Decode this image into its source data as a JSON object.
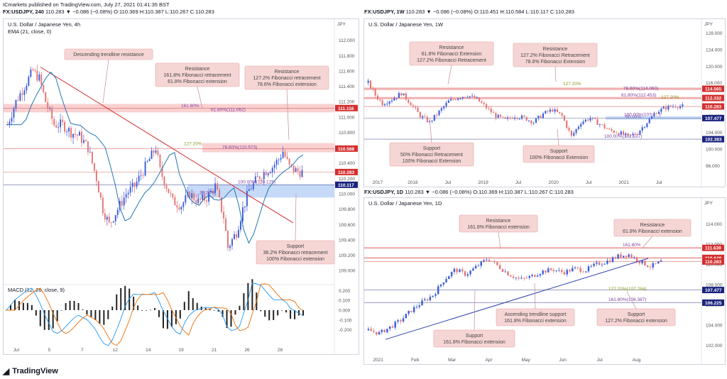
{
  "header": {
    "published": "ICmarkets published on TradingView.com, July 27, 2021 01:41:35 BST",
    "ticker_symbol": "FX:USDJPY, 240",
    "ticker_values": " 110.283 ▼ −0.086 (−0.08%) O:110.369 H:110.387 L:110.267 C:110.283"
  },
  "brand": {
    "logo": "◢",
    "name": "TradingView"
  },
  "colors": {
    "up": "#3b5bdb",
    "down": "#e57373",
    "resistance_zone": "#f8c9c9",
    "support_zone": "#bcd4f7",
    "trend": "#d32f2f",
    "ema": "#1f77b4",
    "annotation": "#f6d5d5",
    "annotation_border": "#e6a5a5",
    "red_tag": "#d32f2f",
    "navy_tag": "#1a237e"
  },
  "panels": {
    "p4h": {
      "title_symbol": "FX:USDJPY, 240",
      "pair": "U.S. Dollar / Japanese Yen, 4h",
      "ema_label": "EMA (21, close, 0)",
      "macd_label": "MACD (12, 26, close, 9)",
      "currency": "JPY"
    },
    "p1w": {
      "title_symbol": "FX:USDJPY, 1W",
      "title_values": " 110.283 ▼ −0.086 (−0.08%) O:110.451 H:110.584 L:110.117 C:110.283",
      "pair": "U.S. Dollar / Japanese Yen, 1W",
      "currency": "JPY"
    },
    "p1d": {
      "title_symbol": "FX:USDJPY, 1D",
      "title_values": " 110.283 ▼ −0.086 (−0.08%) O:110.369 H:110.387 L:110.267 C:110.283",
      "pair": "U.S. Dollar / Japanese Yen, 1D",
      "currency": "JPY"
    }
  },
  "chart_data": [
    {
      "id": "p4h",
      "type": "candlestick",
      "title": "U.S. Dollar / Japanese Yen, 4h",
      "ylim": [
        108.9,
        112.2
      ],
      "y_ticks": [
        109.0,
        109.2,
        109.4,
        109.6,
        109.8,
        110.0,
        110.2,
        110.4,
        110.6,
        110.8,
        111.0,
        111.2,
        111.4,
        111.6,
        111.8,
        112.0,
        112.2
      ],
      "x_ticks": [
        "Jul",
        "5",
        "7",
        "12",
        "14",
        "19",
        "21",
        "26",
        "28"
      ],
      "series": [
        {
          "name": "EMA (21, close, 0)"
        }
      ],
      "price_path": [
        [
          0,
          110.9
        ],
        [
          4,
          111.2
        ],
        [
          8,
          111.4
        ],
        [
          12,
          111.6
        ],
        [
          15,
          111.5
        ],
        [
          18,
          111.2
        ],
        [
          22,
          110.9
        ],
        [
          26,
          110.9
        ],
        [
          30,
          110.8
        ],
        [
          34,
          110.75
        ],
        [
          38,
          110.6
        ],
        [
          42,
          110.2
        ],
        [
          45,
          109.8
        ],
        [
          48,
          109.6
        ],
        [
          52,
          109.8
        ],
        [
          56,
          110.0
        ],
        [
          60,
          110.1
        ],
        [
          64,
          110.3
        ],
        [
          68,
          110.5
        ],
        [
          70,
          110.6
        ],
        [
          72,
          110.3
        ],
        [
          75,
          110.1
        ],
        [
          78,
          109.9
        ],
        [
          82,
          109.85
        ],
        [
          86,
          110.0
        ],
        [
          90,
          109.9
        ],
        [
          94,
          109.95
        ],
        [
          98,
          110.1
        ],
        [
          102,
          109.7
        ],
        [
          104,
          109.3
        ],
        [
          106,
          109.4
        ],
        [
          108,
          109.5
        ],
        [
          111,
          109.8
        ],
        [
          114,
          110.05
        ],
        [
          118,
          110.2
        ],
        [
          122,
          110.3
        ],
        [
          125,
          110.35
        ],
        [
          128,
          110.45
        ],
        [
          130,
          110.55
        ],
        [
          133,
          110.35
        ],
        [
          136,
          110.3
        ],
        [
          139,
          110.28
        ]
      ],
      "levels": [
        {
          "label": "111.116",
          "price": 111.116,
          "tag": "red"
        },
        {
          "label": "110.588",
          "price": 110.588,
          "tag": "red"
        },
        {
          "label": "110.283",
          "price": 110.283,
          "tag": "red"
        },
        {
          "label": "110.117",
          "price": 110.117,
          "tag": "navy"
        }
      ],
      "fib_labels": [
        {
          "text": "161.80%",
          "price": 111.116
        },
        {
          "text": "61.80%(111.062)",
          "price": 111.062
        },
        {
          "text": "127.20%",
          "price": 110.62
        },
        {
          "text": "78.60%(110.573)",
          "price": 110.573
        },
        {
          "text": "100.00%(110.125)",
          "price": 110.12
        },
        {
          "text": "38.20%",
          "price": 109.98
        }
      ],
      "annotations": [
        {
          "text": "Descending trendline resistance"
        },
        {
          "text": "Resistance\n161.8% Fibonacci retracement\n61.8% Fibonacci extension"
        },
        {
          "text": "Resistance\n127.2% Fibonacci retracement\n78.6% Fibonacci extension"
        },
        {
          "text": "Support\n38.2% Fibonacci retracement\n100% Fibonacci extension"
        }
      ],
      "macd_ticks": [
        0.2,
        0.1,
        0.0,
        -0.1,
        -0.2
      ]
    },
    {
      "id": "p1w",
      "type": "candlestick",
      "title": "U.S. Dollar / Japanese Yen, 1W",
      "ylim": [
        94.0,
        130.0
      ],
      "y_ticks": [
        96,
        100,
        104,
        108,
        112,
        116,
        120,
        124,
        128
      ],
      "x_ticks": [
        "2017",
        "2018",
        "Jul",
        "2019",
        "Jul",
        "2020",
        "Jul",
        "2021",
        "Jul"
      ],
      "price_path": [
        [
          0,
          116
        ],
        [
          3,
          113
        ],
        [
          6,
          111
        ],
        [
          10,
          112
        ],
        [
          14,
          113.5
        ],
        [
          18,
          111
        ],
        [
          22,
          108
        ],
        [
          26,
          106.5
        ],
        [
          30,
          109
        ],
        [
          34,
          111.5
        ],
        [
          38,
          112.5
        ],
        [
          42,
          113
        ],
        [
          46,
          112
        ],
        [
          50,
          110
        ],
        [
          54,
          108
        ],
        [
          58,
          107
        ],
        [
          62,
          108
        ],
        [
          66,
          107.5
        ],
        [
          70,
          106.5
        ],
        [
          74,
          108.5
        ],
        [
          78,
          109.5
        ],
        [
          82,
          108
        ],
        [
          86,
          103
        ],
        [
          90,
          106.5
        ],
        [
          94,
          107.5
        ],
        [
          98,
          106
        ],
        [
          102,
          104.5
        ],
        [
          106,
          104
        ],
        [
          110,
          103
        ],
        [
          114,
          104
        ],
        [
          118,
          106.5
        ],
        [
          122,
          109
        ],
        [
          126,
          110
        ],
        [
          130,
          110.5
        ],
        [
          133,
          110.28
        ]
      ],
      "levels": [
        {
          "label": "114.565",
          "price": 114.565,
          "tag": "red"
        },
        {
          "label": "112.332",
          "price": 112.332,
          "tag": "red"
        },
        {
          "label": "110.283",
          "price": 110.283,
          "tag": "red"
        },
        {
          "label": "107.477",
          "price": 107.477,
          "tag": "navy"
        },
        {
          "label": "102.383",
          "price": 102.383,
          "tag": "navy"
        }
      ],
      "fib_labels": [
        {
          "text": "78.60%(114.060)",
          "price": 114.06
        },
        {
          "text": "127.20%",
          "price": 115.2
        },
        {
          "text": "61.80%(112.453)",
          "price": 112.45
        },
        {
          "text": "127.20%",
          "price": 111.9
        },
        {
          "text": "100.00%(107.7...)",
          "price": 107.75
        },
        {
          "text": "50.00%",
          "price": 107.2
        },
        {
          "text": "100.00%(102.537)",
          "price": 102.45
        }
      ],
      "annotations": [
        {
          "text": "Resistance\n61.8% Fibonacci Extension\n127.2% Fibonacci Retracement"
        },
        {
          "text": "Resistance\n127.2% Fibonacci Retracement\n78.6% Fibonacci Extension"
        },
        {
          "text": "Support\n50% Fibonacci Retracement\n100% Fibonacci Extension"
        },
        {
          "text": "Support\n100% Fibonacci Extension"
        }
      ]
    },
    {
      "id": "p1d",
      "type": "candlestick",
      "title": "U.S. Dollar / Japanese Yen, 1D",
      "ylim": [
        101.0,
        116.0
      ],
      "y_ticks": [
        102,
        104,
        106,
        108,
        110,
        112,
        114
      ],
      "x_ticks": [
        "2021",
        "Feb",
        "Mar",
        "Apr",
        "May",
        "Jun",
        "Jul",
        "Aug"
      ],
      "price_path": [
        [
          0,
          103.5
        ],
        [
          4,
          103.2
        ],
        [
          8,
          103.8
        ],
        [
          12,
          104.5
        ],
        [
          16,
          105.5
        ],
        [
          20,
          106.3
        ],
        [
          24,
          107
        ],
        [
          28,
          108.5
        ],
        [
          32,
          109.5
        ],
        [
          36,
          109
        ],
        [
          40,
          109.8
        ],
        [
          44,
          110.6
        ],
        [
          48,
          109.8
        ],
        [
          52,
          109
        ],
        [
          56,
          108.5
        ],
        [
          60,
          108.8
        ],
        [
          64,
          109.3
        ],
        [
          68,
          109.5
        ],
        [
          72,
          109.2
        ],
        [
          76,
          109.6
        ],
        [
          80,
          109.4
        ],
        [
          84,
          110
        ],
        [
          88,
          110.3
        ],
        [
          92,
          110.8
        ],
        [
          96,
          111
        ],
        [
          100,
          110.3
        ],
        [
          104,
          109.8
        ],
        [
          106,
          110
        ],
        [
          108,
          110.283
        ]
      ],
      "levels": [
        {
          "label": "111.639",
          "price": 111.639,
          "tag": "red"
        },
        {
          "label": "110.648",
          "price": 110.648,
          "tag": "red"
        },
        {
          "label": "110.283",
          "price": 110.283,
          "tag": "red"
        },
        {
          "label": "107.477",
          "price": 107.477,
          "tag": "navy"
        },
        {
          "label": "106.225",
          "price": 106.225,
          "tag": "navy"
        }
      ],
      "fib_labels": [
        {
          "text": "161.80%",
          "price": 111.7
        },
        {
          "text": "127.20%(107.284)",
          "price": 107.33
        },
        {
          "text": "161.80%(106.387)",
          "price": 106.3
        }
      ],
      "annotations": [
        {
          "text": "Resistance\n161.8% Fibonacci extension"
        },
        {
          "text": "Resistance\n61.8% Fibonacci extension"
        },
        {
          "text": "Ascending trendline support\n161.8% Fibonacci extension"
        },
        {
          "text": "Support\n161.8% Fibonacci extension"
        },
        {
          "text": "Support\n127.2% Fibonacci extension"
        }
      ]
    }
  ]
}
